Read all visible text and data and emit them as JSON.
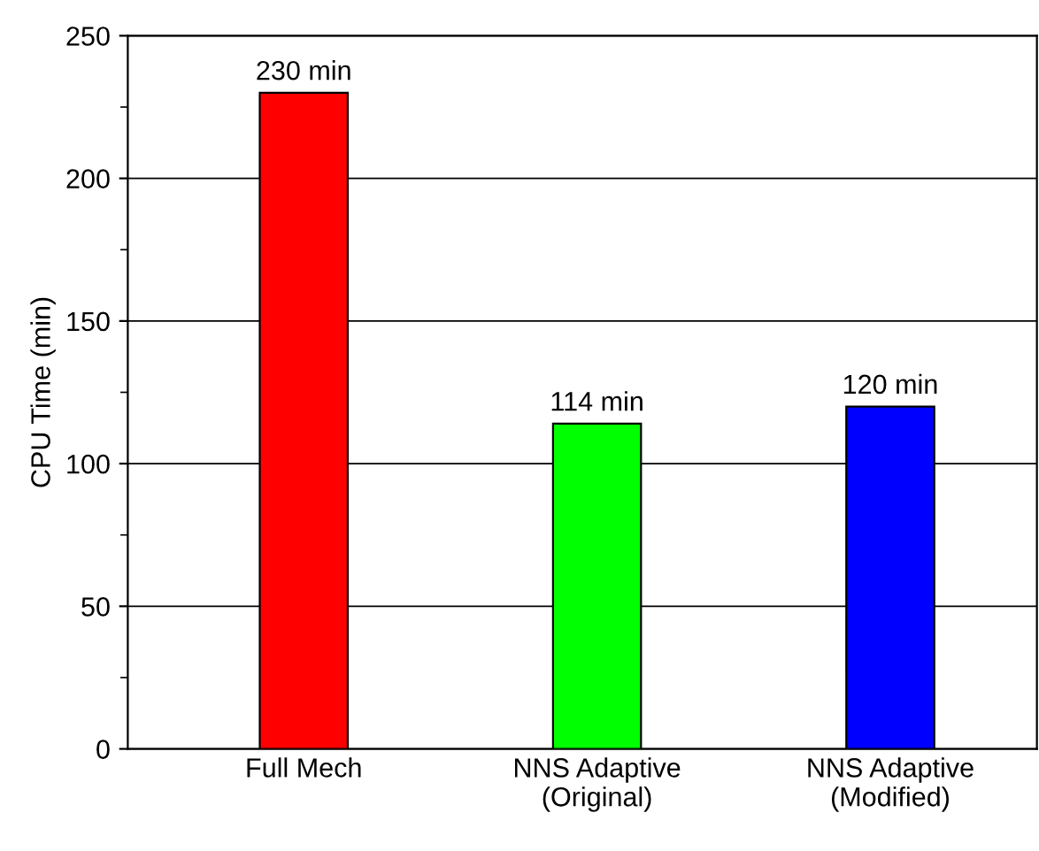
{
  "chart_data": {
    "type": "bar",
    "ylabel": "CPU Time (min)",
    "categories": [
      "Full Mech",
      "NNS Adaptive\n(Original)",
      "NNS Adaptive\n(Modified)"
    ],
    "values": [
      230,
      114,
      120
    ],
    "colors": [
      "#ff0000",
      "#00ff00",
      "#0000ff"
    ],
    "value_labels": [
      "230 min",
      "114 min",
      "120 min"
    ],
    "ylim": [
      0,
      250
    ],
    "yticks": [
      0,
      50,
      100,
      150,
      200,
      250
    ],
    "grid": "y"
  }
}
